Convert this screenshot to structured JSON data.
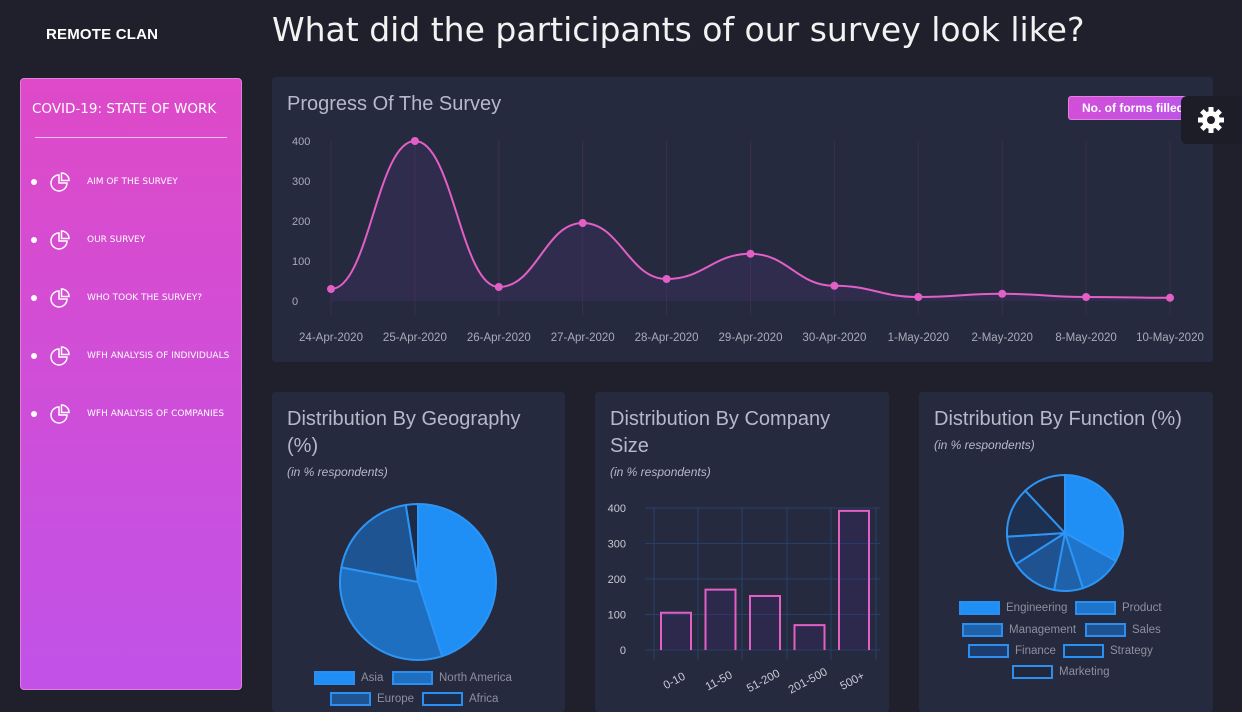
{
  "brand": "REMOTE CLAN",
  "page_title": "What did the participants of our survey look like?",
  "sidebar": {
    "title": "COVID-19: STATE OF WORK",
    "items": [
      {
        "label": "AIM OF THE SURVEY",
        "icon": "pie-chart-icon"
      },
      {
        "label": "OUR SURVEY",
        "icon": "pie-chart-icon"
      },
      {
        "label": "WHO TOOK THE SURVEY?",
        "icon": "pie-chart-icon"
      },
      {
        "label": "WFH ANALYSIS OF INDIVIDUALS",
        "icon": "pie-chart-icon"
      },
      {
        "label": "WFH ANALYSIS OF COMPANIES",
        "icon": "pie-chart-icon"
      }
    ]
  },
  "settings_icon": "gear-icon",
  "chart_data": [
    {
      "type": "line",
      "title": "Progress Of The Survey",
      "legend": [
        "No. of forms filled"
      ],
      "legend_placement": "top-right",
      "categories": [
        "24-Apr-2020",
        "25-Apr-2020",
        "26-Apr-2020",
        "27-Apr-2020",
        "28-Apr-2020",
        "29-Apr-2020",
        "30-Apr-2020",
        "1-May-2020",
        "2-May-2020",
        "8-May-2020",
        "10-May-2020"
      ],
      "series": [
        {
          "name": "No. of forms filled",
          "values": [
            30,
            400,
            35,
            195,
            55,
            118,
            38,
            10,
            18,
            10,
            8
          ]
        }
      ],
      "yticks": [
        "0",
        "100",
        "200",
        "300",
        "400"
      ],
      "ylim": [
        0,
        400
      ],
      "color": "#e25fc6"
    },
    {
      "type": "pie",
      "title": "Distribution By Geography (%)",
      "subtitle": "(in % respondents)",
      "categories": [
        "Asia",
        "North America",
        "Europe",
        "Africa"
      ],
      "values": [
        45,
        33,
        19.5,
        2.5
      ],
      "colors": [
        "#1f8ff5",
        "#1f6fc0",
        "#1f5493",
        "#1e2b48"
      ]
    },
    {
      "type": "bar",
      "title": "Distribution By Company Size",
      "subtitle": "(in % respondents)",
      "categories": [
        "0-10",
        "11-50",
        "51-200",
        "201-500",
        "500+"
      ],
      "values": [
        105,
        170,
        152,
        70,
        392
      ],
      "yticks": [
        "0",
        "100",
        "200",
        "300",
        "400"
      ],
      "ylim": [
        0,
        400
      ],
      "grid": true,
      "color": "#e25fc6"
    },
    {
      "type": "pie",
      "title": "Distribution By Function (%)",
      "subtitle": "(in % respondents)",
      "categories": [
        "Engineering",
        "Product",
        "Management",
        "Sales",
        "Finance",
        "Strategy",
        "Marketing"
      ],
      "values": [
        33,
        12,
        8,
        13,
        8,
        14,
        12
      ],
      "colors": [
        "#1f8ff5",
        "#1f74cc",
        "#1f62aa",
        "#1e5290",
        "#1c3d6e",
        "#1d3050",
        "#22273c"
      ]
    }
  ]
}
